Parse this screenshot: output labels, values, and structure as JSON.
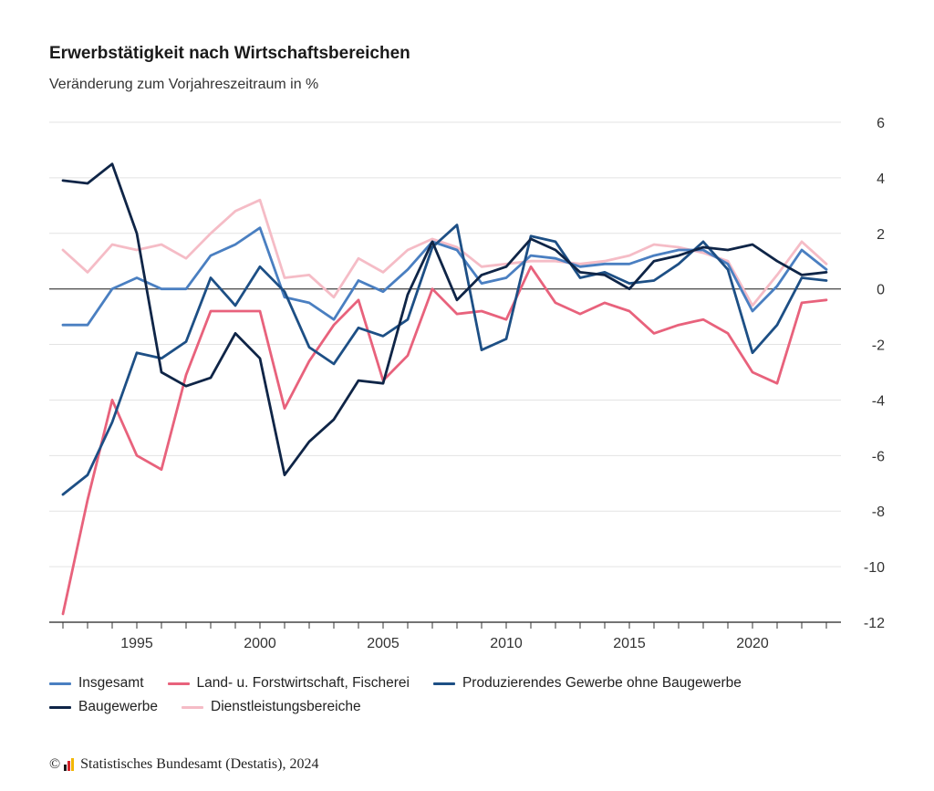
{
  "title": "Erwerbstätigkeit nach Wirtschaftsbereichen",
  "subtitle": "Veränderung zum Vorjahreszeitraum in %",
  "footer": {
    "copyright": "©",
    "source": "Statistisches Bundesamt (Destatis), 2024",
    "logo_colors": [
      "#1a1a1a",
      "#d2232a",
      "#f2b600"
    ]
  },
  "chart_data": {
    "type": "line",
    "x": [
      1992,
      1993,
      1994,
      1995,
      1996,
      1997,
      1998,
      1999,
      2000,
      2001,
      2002,
      2003,
      2004,
      2005,
      2006,
      2007,
      2008,
      2009,
      2010,
      2011,
      2012,
      2013,
      2014,
      2015,
      2016,
      2017,
      2018,
      2019,
      2020,
      2021,
      2022,
      2023
    ],
    "xticks": [
      1995,
      2000,
      2005,
      2010,
      2015,
      2020
    ],
    "ylim": [
      -12,
      6
    ],
    "yticks": [
      6,
      4,
      2,
      0,
      -2,
      -4,
      -6,
      -8,
      -10,
      -12
    ],
    "grid": true,
    "legend_position": "bottom",
    "series": [
      {
        "name": "Insgesamt",
        "color": "#4a7fc1",
        "values": [
          -1.3,
          -1.3,
          0.0,
          0.4,
          0.0,
          0.0,
          1.2,
          1.6,
          2.2,
          -0.3,
          -0.5,
          -1.1,
          0.3,
          -0.1,
          0.7,
          1.7,
          1.4,
          0.2,
          0.4,
          1.2,
          1.1,
          0.8,
          0.9,
          0.9,
          1.2,
          1.4,
          1.4,
          0.9,
          -0.8,
          0.1,
          1.4,
          0.7
        ]
      },
      {
        "name": "Land- u. Forstwirtschaft, Fischerei",
        "color": "#e8627c",
        "values": [
          -11.7,
          -7.6,
          -4.0,
          -6.0,
          -6.5,
          -3.1,
          -0.8,
          -0.8,
          -0.8,
          -4.3,
          -2.6,
          -1.3,
          -0.4,
          -3.3,
          -2.4,
          0.0,
          -0.9,
          -0.8,
          -1.1,
          0.8,
          -0.5,
          -0.9,
          -0.5,
          -0.8,
          -1.6,
          -1.3,
          -1.1,
          -1.6,
          -3.0,
          -3.4,
          -0.5,
          -0.4
        ]
      },
      {
        "name": "Produzierendes Gewerbe ohne Baugewerbe",
        "color": "#1d4f85",
        "values": [
          -7.4,
          -6.7,
          -4.8,
          -2.3,
          -2.5,
          -1.9,
          0.4,
          -0.6,
          0.8,
          -0.1,
          -2.1,
          -2.7,
          -1.4,
          -1.7,
          -1.1,
          1.5,
          2.3,
          -2.2,
          -1.8,
          1.9,
          1.7,
          0.4,
          0.6,
          0.2,
          0.3,
          0.9,
          1.7,
          0.7,
          -2.3,
          -1.3,
          0.4,
          0.3
        ]
      },
      {
        "name": "Baugewerbe",
        "color": "#0f2547",
        "values": [
          3.9,
          3.8,
          4.5,
          2.0,
          -3.0,
          -3.5,
          -3.2,
          -1.6,
          -2.5,
          -6.7,
          -5.5,
          -4.7,
          -3.3,
          -3.4,
          -0.2,
          1.7,
          -0.4,
          0.5,
          0.8,
          1.8,
          1.4,
          0.6,
          0.5,
          0.0,
          1.0,
          1.2,
          1.5,
          1.4,
          1.6,
          1.0,
          0.5,
          0.6
        ]
      },
      {
        "name": "Dienstleistungsbereiche",
        "color": "#f5bcc6",
        "values": [
          1.4,
          0.6,
          1.6,
          1.4,
          1.6,
          1.1,
          2.0,
          2.8,
          3.2,
          0.4,
          0.5,
          -0.3,
          1.1,
          0.6,
          1.4,
          1.8,
          1.5,
          0.8,
          0.9,
          1.0,
          1.0,
          0.9,
          1.0,
          1.2,
          1.6,
          1.5,
          1.3,
          1.0,
          -0.6,
          0.5,
          1.7,
          0.9
        ]
      }
    ]
  }
}
